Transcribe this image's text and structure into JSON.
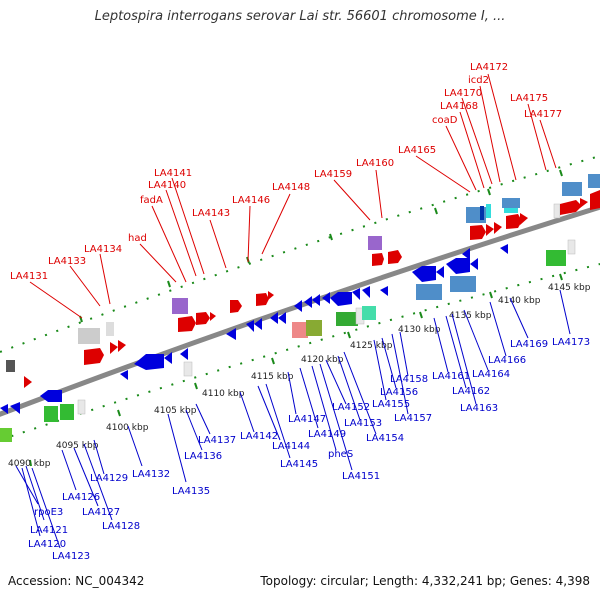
{
  "title": "Leptospira interrogans serovar Lai str. 56601 chromosome I, ...",
  "footer": {
    "accession": "Accession: NC_004342",
    "stats": "Topology: circular; Length: 4,332,241 bp; Genes: 4,398"
  },
  "colors": {
    "backbone": "#888888",
    "tick": "#1a8a1a",
    "forward_label": "#dd0000",
    "reverse_label": "#0000cc",
    "kbp_label": "#222222"
  },
  "kbp_ticks": [
    "4090 kbp",
    "4095 kbp",
    "4100 kbp",
    "4105 kbp",
    "4110 kbp",
    "4115 kbp",
    "4120 kbp",
    "4125 kbp",
    "4130 kbp",
    "4135 kbp",
    "4140 kbp",
    "4145 kbp"
  ],
  "forward_labels": [
    "LA4131",
    "LA4133",
    "LA4134",
    "had",
    "fadA",
    "LA4140",
    "LA4141",
    "LA4143",
    "LA4146",
    "LA4148",
    "LA4159",
    "LA4160",
    "LA4165",
    "coaD",
    "LA4168",
    "LA4170",
    "icd2",
    "LA4172",
    "LA4175",
    "LA4177"
  ],
  "reverse_labels": [
    "rpoE3",
    "LA4121",
    "LA4120",
    "LA4123",
    "LA4126",
    "LA4127",
    "LA4128",
    "LA4129",
    "LA4132",
    "LA4135",
    "LA4136",
    "LA4137",
    "LA4142",
    "LA4144",
    "LA4145",
    "LA4147",
    "LA4149",
    "pheS",
    "LA4151",
    "LA4152",
    "LA4153",
    "LA4154",
    "LA4155",
    "LA4156",
    "LA4157",
    "LA4158",
    "LA4161",
    "LA4162",
    "LA4163",
    "LA4164",
    "LA4166",
    "LA4169",
    "LA4173"
  ],
  "features": {
    "fwd_cds": "forward-strand CDS",
    "rev_cds": "reverse-strand CDS"
  }
}
